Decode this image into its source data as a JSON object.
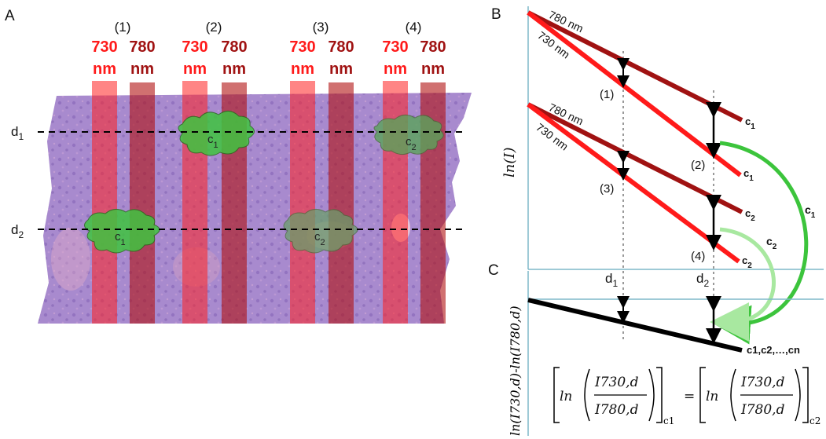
{
  "panels": {
    "a_label": "A",
    "b_label": "B",
    "c_label": "C"
  },
  "lanes": [
    {
      "number": "(1)",
      "wl1_value": "730",
      "wl1_unit": "nm",
      "wl2_value": "780",
      "wl2_unit": "nm"
    },
    {
      "number": "(2)",
      "wl1_value": "730",
      "wl1_unit": "nm",
      "wl2_value": "780",
      "wl2_unit": "nm"
    },
    {
      "number": "(3)",
      "wl1_value": "730",
      "wl1_unit": "nm",
      "wl2_value": "780",
      "wl2_unit": "nm"
    },
    {
      "number": "(4)",
      "wl1_value": "730",
      "wl1_unit": "nm",
      "wl2_value": "780",
      "wl2_unit": "nm"
    }
  ],
  "depths": {
    "d1": {
      "base": "d",
      "sub": "1"
    },
    "d2": {
      "base": "d",
      "sub": "2"
    }
  },
  "inclusions": [
    {
      "base": "c",
      "sub": "1",
      "color": "#3fc43f"
    },
    {
      "base": "c",
      "sub": "2",
      "color": "#5aa35a"
    },
    {
      "base": "c",
      "sub": "1",
      "color": "#3fc43f"
    },
    {
      "base": "c",
      "sub": "2",
      "color": "#6a9e6a"
    }
  ],
  "panel_b": {
    "y_axis_label": "ln(I)",
    "beam_labels": [
      "780 nm",
      "730 nm",
      "780 nm",
      "730 nm"
    ],
    "end_labels": [
      {
        "base": "c",
        "sub": "1"
      },
      {
        "base": "c",
        "sub": "1"
      },
      {
        "base": "c",
        "sub": "2"
      },
      {
        "base": "c",
        "sub": "2"
      }
    ],
    "marker_labels": [
      "(1)",
      "(2)",
      "(3)",
      "(4)"
    ],
    "arc_labels": [
      {
        "base": "c",
        "sub": "1"
      },
      {
        "base": "c",
        "sub": "2"
      }
    ]
  },
  "panel_c": {
    "y_axis_label": "ln(I730,d)-ln(I780,d)",
    "x_labels": [
      {
        "base": "d",
        "sub": "1"
      },
      {
        "base": "d",
        "sub": "2"
      }
    ],
    "end_label": "c1,c2,…,cn",
    "formula": {
      "fn": "ln",
      "num": "I730,d",
      "den": "I780,d",
      "eq": "=",
      "sub_left": "c1",
      "sub_right": "c2"
    }
  },
  "colors": {
    "beam_730": "#ff1a1a",
    "beam_780": "#a01212",
    "tissue": "#9b7ec8",
    "arc_c1": "#3cc43c",
    "arc_c2": "#a8e8a0",
    "axis": "#7fb8c8"
  }
}
